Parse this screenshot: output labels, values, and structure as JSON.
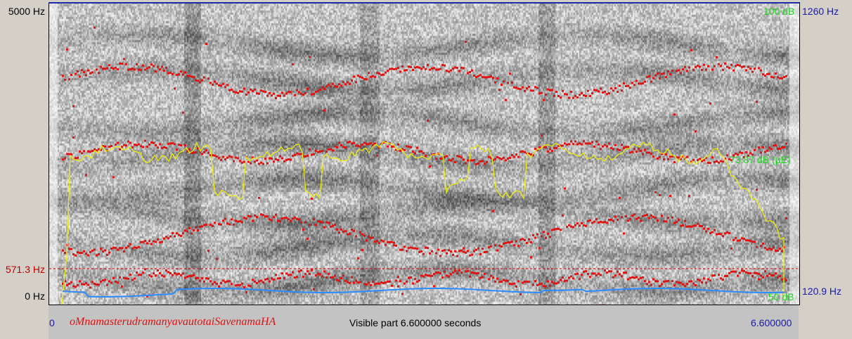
{
  "left_axis": {
    "top_label": "5000 Hz",
    "marker_label": "571.3 Hz",
    "bottom_label": "0 Hz"
  },
  "right_axis": {
    "top_label": "1260 Hz",
    "bottom_label": "120.9 Hz"
  },
  "intensity": {
    "top_label": "100 dB",
    "mid_label": "73.87 dB (μE)",
    "bottom_label": "50 dB"
  },
  "bottom_bar": {
    "start_time": "0",
    "text_title": "oMnamasterudramanyavautotaiSavenamaHA",
    "visible_part": "Visible part 6.600000 seconds",
    "end_time": "6.600000"
  },
  "colors": {
    "formant": "#e01212",
    "intensity": "#f0f000",
    "pitch": "#2b8cff",
    "marker_line": "#c00000"
  }
}
